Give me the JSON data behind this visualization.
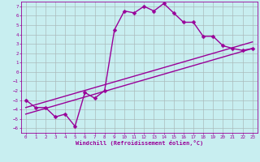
{
  "title": "",
  "xlabel": "Windchill (Refroidissement éolien,°C)",
  "bg_color": "#c8eef0",
  "line_color": "#990099",
  "grid_color": "#aabbbb",
  "xlim": [
    -0.5,
    23.5
  ],
  "ylim": [
    -6.5,
    7.5
  ],
  "xticks": [
    0,
    1,
    2,
    3,
    4,
    5,
    6,
    7,
    8,
    9,
    10,
    11,
    12,
    13,
    14,
    15,
    16,
    17,
    18,
    19,
    20,
    21,
    22,
    23
  ],
  "yticks": [
    -6,
    -5,
    -4,
    -3,
    -2,
    -1,
    0,
    1,
    2,
    3,
    4,
    5,
    6,
    7
  ],
  "curve1_x": [
    0,
    1,
    2,
    3,
    4,
    5,
    6,
    7,
    8,
    9,
    10,
    11,
    12,
    13,
    14,
    15,
    16,
    17,
    18,
    19,
    20,
    21,
    22,
    23
  ],
  "curve1_y": [
    -3,
    -3.8,
    -3.8,
    -4.8,
    -4.5,
    -5.8,
    -2.2,
    -2.8,
    -2.0,
    4.5,
    6.5,
    6.3,
    7.0,
    6.5,
    7.3,
    6.3,
    5.3,
    5.3,
    3.8,
    3.8,
    2.8,
    2.5,
    2.3,
    2.5
  ],
  "curve2_x": [
    0,
    23
  ],
  "curve2_y": [
    -3.8,
    3.2
  ],
  "curve3_x": [
    0,
    23
  ],
  "curve3_y": [
    -4.5,
    2.5
  ],
  "marker": "D",
  "markersize": 2.5,
  "linewidth": 1.0
}
